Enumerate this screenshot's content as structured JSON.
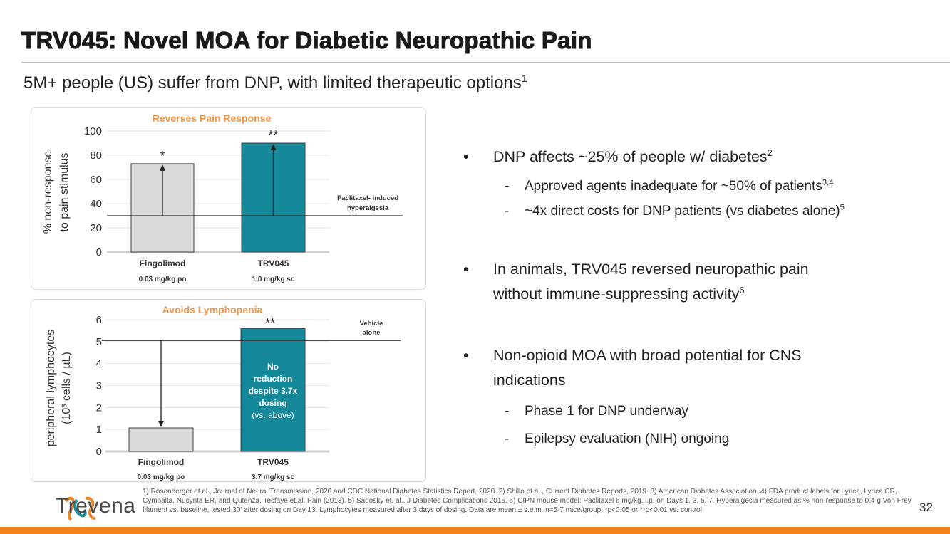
{
  "title": "TRV045: Novel MOA for Diabetic Neuropathic Pain",
  "subtitle": {
    "text": "5M+ people (US) suffer from DNP, with limited therapeutic options",
    "sup": "1"
  },
  "colors": {
    "accent": "#f0964a",
    "teal": "#158899",
    "grey_bar": "#d9d9d9",
    "orange": "#f5821f"
  },
  "chart_data": [
    {
      "type": "bar",
      "title": "Reverses Pain Response",
      "ylabel": "% non-response to pain stimulus",
      "ylabel_lines": [
        "% non-response",
        "to pain stimulus"
      ],
      "ylim": [
        0,
        100
      ],
      "yticks": [
        "0",
        "20",
        "40",
        "60",
        "80",
        "100"
      ],
      "ytick_values": [
        0,
        20,
        40,
        60,
        80,
        100
      ],
      "categories": [
        "Fingolimod",
        "TRV045"
      ],
      "doses": [
        "0.03 mg/kg po",
        "1.0 mg/kg sc"
      ],
      "values": [
        73,
        90
      ],
      "significance": [
        "*",
        "**"
      ],
      "reference": {
        "value": 30,
        "label_lines": [
          "Paclitaxel- induced",
          "hyperalgesia"
        ]
      }
    },
    {
      "type": "bar",
      "title": "Avoids Lymphopenia",
      "ylabel": "peripheral lymphocytes (10^3 cells / µL)",
      "ylabel_lines": [
        "peripheral lymphocytes",
        "(10³ cells / µL)"
      ],
      "ylim": [
        0,
        6
      ],
      "yticks": [
        "0",
        "1",
        "2",
        "3",
        "4",
        "5",
        "6"
      ],
      "ytick_values": [
        0,
        1,
        2,
        3,
        4,
        5,
        6
      ],
      "categories": [
        "Fingolimod",
        "TRV045"
      ],
      "doses": [
        "0.03 mg/kg po",
        "3.7 mg/kg sc"
      ],
      "values": [
        1.07,
        5.6
      ],
      "significance": [
        "",
        "**"
      ],
      "reference": {
        "value": 5.05,
        "label_lines": [
          "Vehicle",
          "alone"
        ]
      },
      "annotation_lines": [
        "No",
        "reduction",
        "despite 3.7x",
        "dosing",
        "(vs. above)"
      ]
    }
  ],
  "bullets": [
    {
      "text": "DNP affects ~25% of people w/ diabetes",
      "sup": "2"
    },
    {
      "text": "Approved agents inadequate for ~50% of patients",
      "sup": "3,4"
    },
    {
      "text": "~4x direct costs for DNP patients (vs diabetes alone)",
      "sup": "5"
    },
    {
      "line1": "In animals, TRV045 reversed neuropathic pain",
      "line2": "without immune-suppressing activity",
      "sup": "6"
    },
    {
      "line1": "Non-opioid MOA with broad potential for CNS",
      "line2": "indications"
    },
    {
      "text": "Phase 1 for DNP underway"
    },
    {
      "text": "Epilepsy evaluation (NIH) ongoing"
    }
  ],
  "bullet_char": "•",
  "dash_char": "-",
  "footnotes": "1) Rosenberger et al., Journal of Neural Transmission, 2020 and CDC National Diabetes Statistics Report, 2020. 2) Shillo et al., Current Diabetes Reports, 2019. 3) American Diabetes Association. 4) FDA product labels for Lyrica, Lyrica CR, Cymbalta, Nucynta ER, and Qutenza, Tesfaye et.al. Pain (2013). 5) Sadosky et. al., J Diabetes Complications 2015. 6) CIPN mouse model: Paclitaxel 6 mg/kg, i.p. on Days 1, 3, 5, 7. Hyperalgesia measured as % non-response to 0.4 g Von Frey filament vs. baseline, tested 30' after dosing on Day 13. Lymphocytes measured after 3 days of dosing. Data are mean ± s.e.m. n=5-7 mice/group. *p<0.05 or **p<0.01 vs. control",
  "logo": "Trevena",
  "page_number": "32"
}
